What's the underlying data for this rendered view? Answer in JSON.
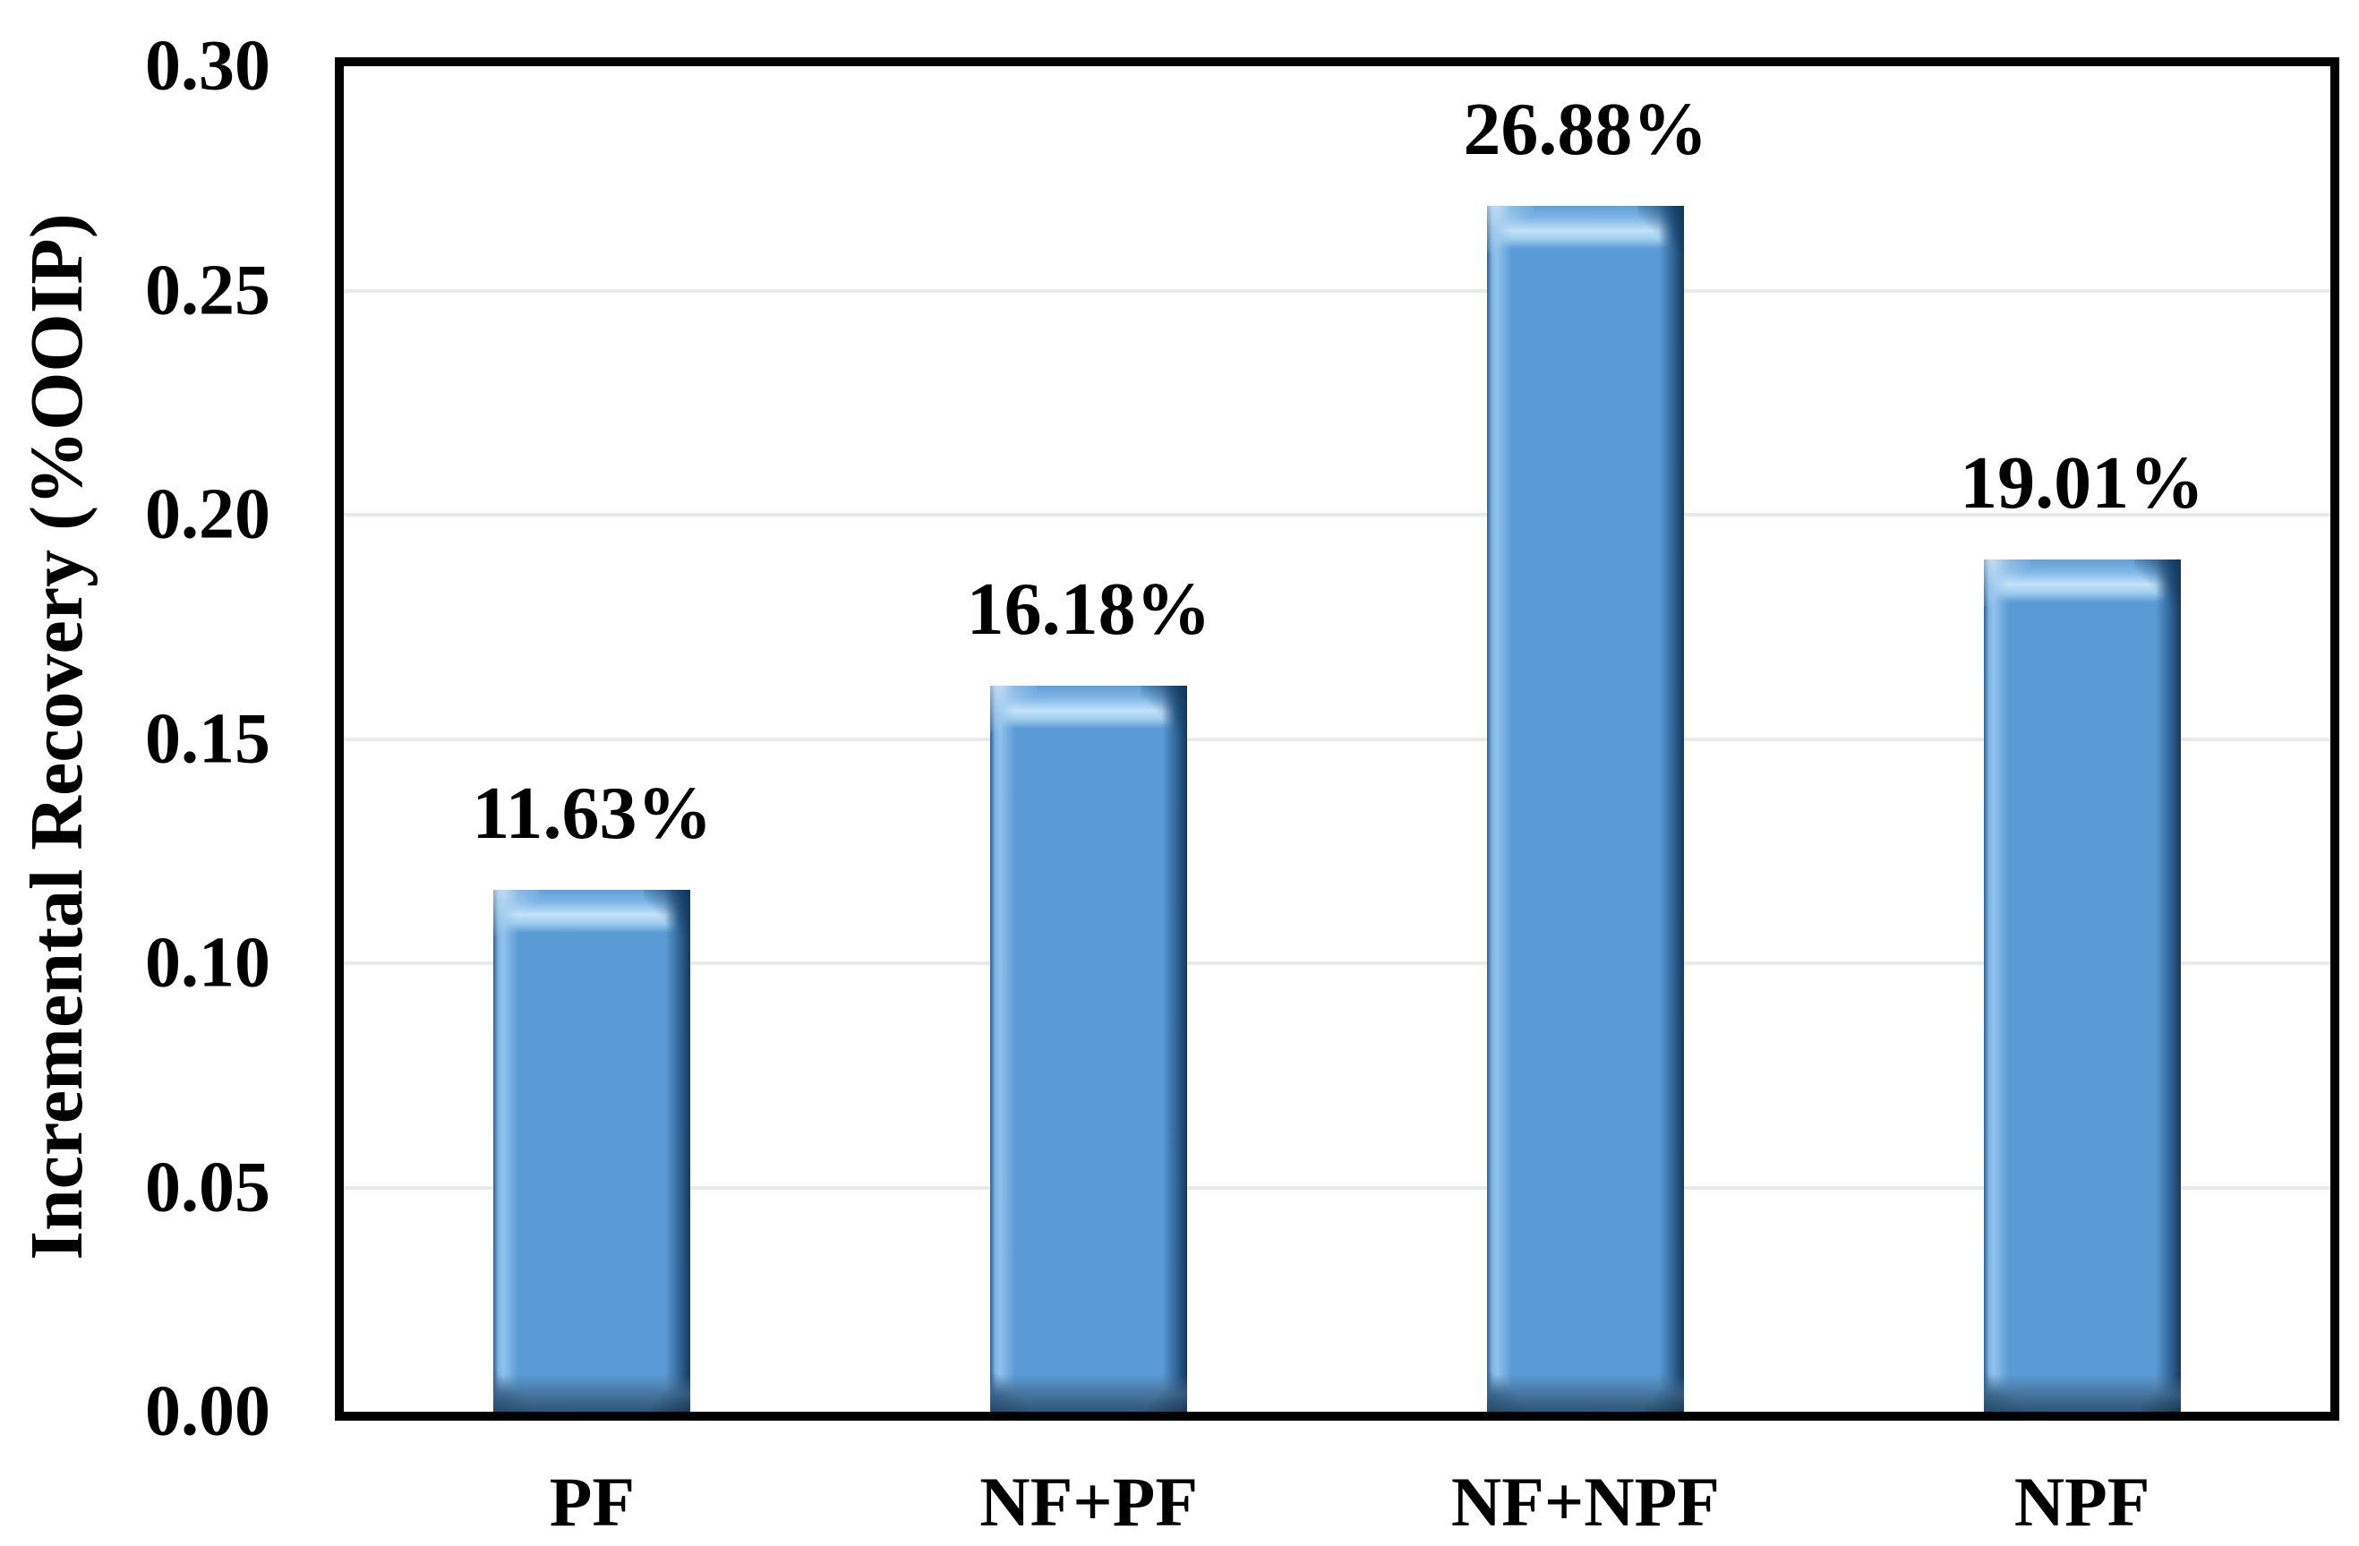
{
  "chart_data": {
    "type": "bar",
    "categories": [
      "PF",
      "NF+PF",
      "NF+NPF",
      "NPF"
    ],
    "values": [
      0.1163,
      0.1618,
      0.2688,
      0.1901
    ],
    "bar_labels": [
      "11.63%",
      "16.18%",
      "26.88%",
      "19.01%"
    ],
    "title": "",
    "xlabel": "",
    "ylabel": "Incremental Recovery (%OOIP)",
    "ylim": [
      0.0,
      0.3
    ],
    "ytick_step": 0.05,
    "yticks": [
      "0.00",
      "0.05",
      "0.10",
      "0.15",
      "0.20",
      "0.25",
      "0.30"
    ],
    "grid": "horizontal-major",
    "legend": "none",
    "colors": {
      "bar_fill": "#5B9BD5",
      "bar_highlight": "#C2E2F9",
      "bar_shadow_dark": "#16395C",
      "gridline": "#EAEAEA",
      "axis_frame": "#000000",
      "text": "#000000",
      "background": "#FFFFFF"
    }
  }
}
